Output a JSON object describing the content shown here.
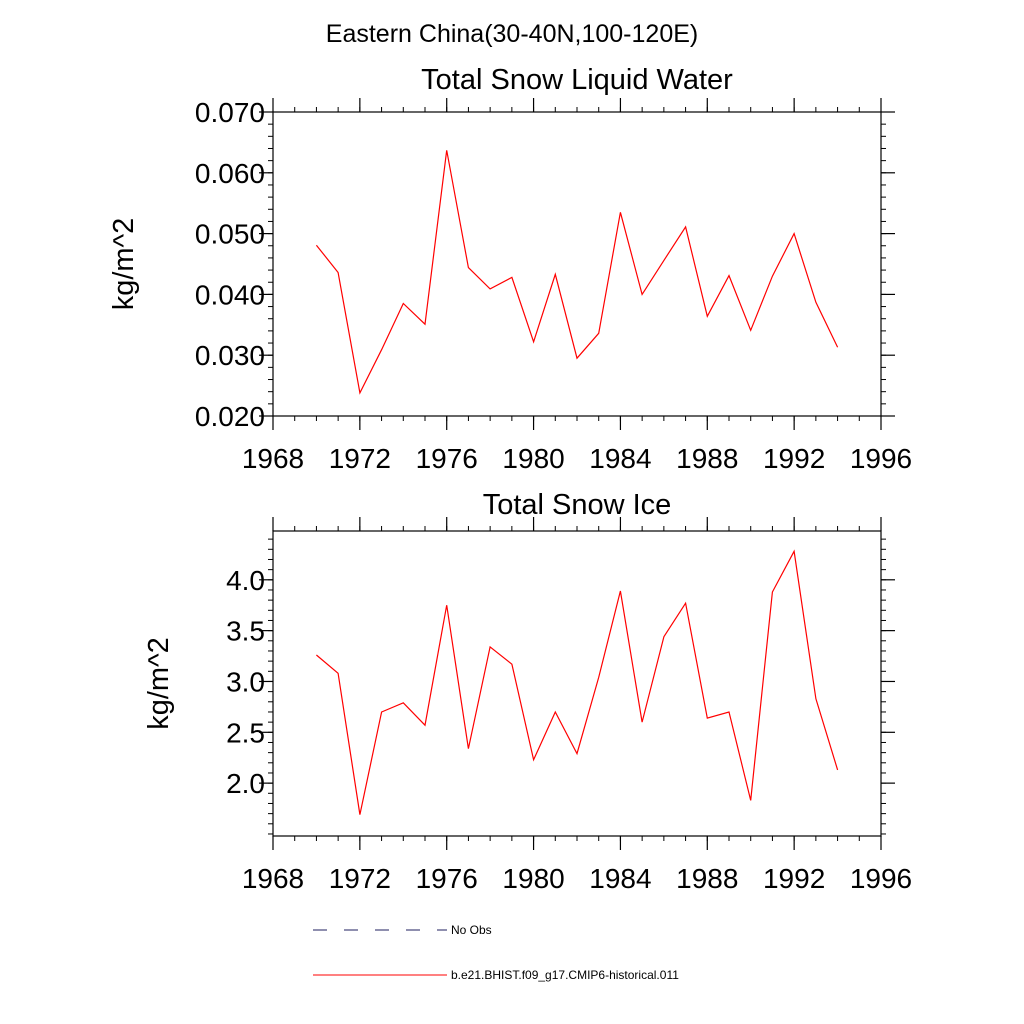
{
  "suptitle": "Eastern China(30-40N,100-120E)",
  "legend": [
    {
      "label": "No Obs",
      "color": "#1f1f5f",
      "style": "dashed"
    },
    {
      "label": "b.e21.BHIST.f09_g17.CMIP6-historical.011",
      "color": "#ff0000",
      "style": "solid"
    }
  ],
  "chart_data": [
    {
      "type": "line",
      "title": "Total Snow Liquid Water",
      "xlabel": "",
      "ylabel": "kg/m^2",
      "xlim": [
        1968,
        1996
      ],
      "ylim": [
        0.02,
        0.07
      ],
      "xticks": [
        1968,
        1972,
        1976,
        1980,
        1984,
        1988,
        1992,
        1996
      ],
      "xtick_labels": [
        "1968",
        "1972",
        "1976",
        "1980",
        "1984",
        "1988",
        "1992",
        "1996"
      ],
      "yticks": [
        0.02,
        0.03,
        0.04,
        0.05,
        0.06,
        0.07
      ],
      "ytick_labels": [
        "0.020",
        "0.030",
        "0.040",
        "0.050",
        "0.060",
        "0.070"
      ],
      "x": [
        1970,
        1971,
        1972,
        1973,
        1974,
        1975,
        1976,
        1977,
        1978,
        1979,
        1980,
        1981,
        1982,
        1983,
        1984,
        1985,
        1986,
        1987,
        1988,
        1989,
        1990,
        1991,
        1992,
        1993,
        1994
      ],
      "series": [
        {
          "name": "b.e21.BHIST.f09_g17.CMIP6-historical.011",
          "color": "#ff0000",
          "values": [
            0.0481,
            0.0436,
            0.0238,
            0.0309,
            0.0385,
            0.0351,
            0.0637,
            0.0444,
            0.0409,
            0.0428,
            0.0322,
            0.0433,
            0.0295,
            0.0336,
            0.0535,
            0.04,
            0.0456,
            0.0511,
            0.0364,
            0.0431,
            0.0341,
            0.043,
            0.05,
            0.0387,
            0.0313
          ]
        }
      ]
    },
    {
      "type": "line",
      "title": "Total Snow Ice",
      "xlabel": "",
      "ylabel": "kg/m^2",
      "xlim": [
        1968,
        1996
      ],
      "ylim": [
        1.48,
        4.48
      ],
      "xticks": [
        1968,
        1972,
        1976,
        1980,
        1984,
        1988,
        1992,
        1996
      ],
      "xtick_labels": [
        "1968",
        "1972",
        "1976",
        "1980",
        "1984",
        "1988",
        "1992",
        "1996"
      ],
      "yticks": [
        2.0,
        2.5,
        3.0,
        3.5,
        4.0
      ],
      "ytick_labels": [
        "2.0",
        "2.5",
        "3.0",
        "3.5",
        "4.0"
      ],
      "x": [
        1970,
        1971,
        1972,
        1973,
        1974,
        1975,
        1976,
        1977,
        1978,
        1979,
        1980,
        1981,
        1982,
        1983,
        1984,
        1985,
        1986,
        1987,
        1988,
        1989,
        1990,
        1991,
        1992,
        1993,
        1994
      ],
      "series": [
        {
          "name": "b.e21.BHIST.f09_g17.CMIP6-historical.011",
          "color": "#ff0000",
          "values": [
            3.26,
            3.08,
            1.69,
            2.7,
            2.79,
            2.57,
            3.75,
            2.34,
            3.34,
            3.17,
            2.23,
            2.7,
            2.29,
            3.04,
            3.89,
            2.6,
            3.44,
            3.77,
            2.64,
            2.7,
            1.83,
            3.88,
            4.28,
            2.83,
            2.13
          ]
        }
      ]
    }
  ]
}
